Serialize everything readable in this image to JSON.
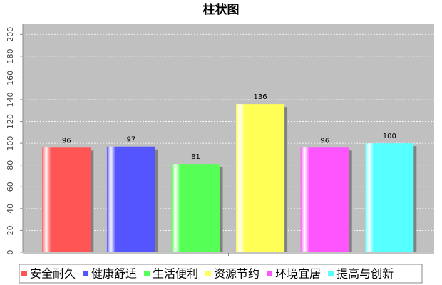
{
  "chart_data": {
    "type": "bar",
    "title": "柱状图",
    "series": [
      {
        "name": "安全耐久",
        "color": "#ff5555",
        "values": [
          96
        ]
      },
      {
        "name": "健康舒适",
        "color": "#5555ff",
        "values": [
          97
        ]
      },
      {
        "name": "生活便利",
        "color": "#55ff55",
        "values": [
          81
        ]
      },
      {
        "name": "资源节约",
        "color": "#ffff55",
        "values": [
          136
        ]
      },
      {
        "name": "环境宜居",
        "color": "#ff55ff",
        "values": [
          96
        ]
      },
      {
        "name": "提高与创新",
        "color": "#55ffff",
        "values": [
          100
        ]
      }
    ],
    "ylim": [
      0,
      210
    ],
    "yticks": [
      0,
      20,
      40,
      60,
      80,
      100,
      120,
      140,
      160,
      180,
      200
    ],
    "grid": true,
    "legend": "bottom"
  }
}
